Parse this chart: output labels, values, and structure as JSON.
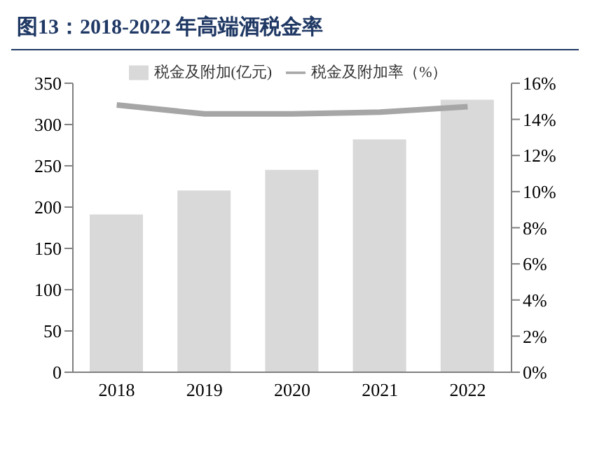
{
  "chart_data": {
    "type": "bar",
    "title": "图13：2018-2022 年高端酒税金率",
    "categories": [
      "2018",
      "2019",
      "2020",
      "2021",
      "2022"
    ],
    "series": [
      {
        "name": "税金及附加(亿元)",
        "color": "#d9d9d9",
        "values": [
          191,
          220,
          245,
          282,
          330
        ]
      },
      {
        "name": "税金及附加率（%）",
        "type": "line",
        "axis": "y2",
        "color": "#a6a6a6",
        "values": [
          14.8,
          14.3,
          14.3,
          14.4,
          14.7
        ]
      }
    ],
    "ylim": [
      0,
      350
    ],
    "yticks": [
      0,
      50,
      100,
      150,
      200,
      250,
      300,
      350
    ],
    "y2lim": [
      0,
      16
    ],
    "y2ticks": [
      {
        "value": 0,
        "label": "0%"
      },
      {
        "value": 2,
        "label": "2%"
      },
      {
        "value": 4,
        "label": "4%"
      },
      {
        "value": 6,
        "label": "6%"
      },
      {
        "value": 8,
        "label": "8%"
      },
      {
        "value": 10,
        "label": "10%"
      },
      {
        "value": 12,
        "label": "12%"
      },
      {
        "value": 14,
        "label": "14%"
      },
      {
        "value": 16,
        "label": "16%"
      }
    ],
    "legend": "top",
    "grid": false,
    "marker": "none"
  }
}
